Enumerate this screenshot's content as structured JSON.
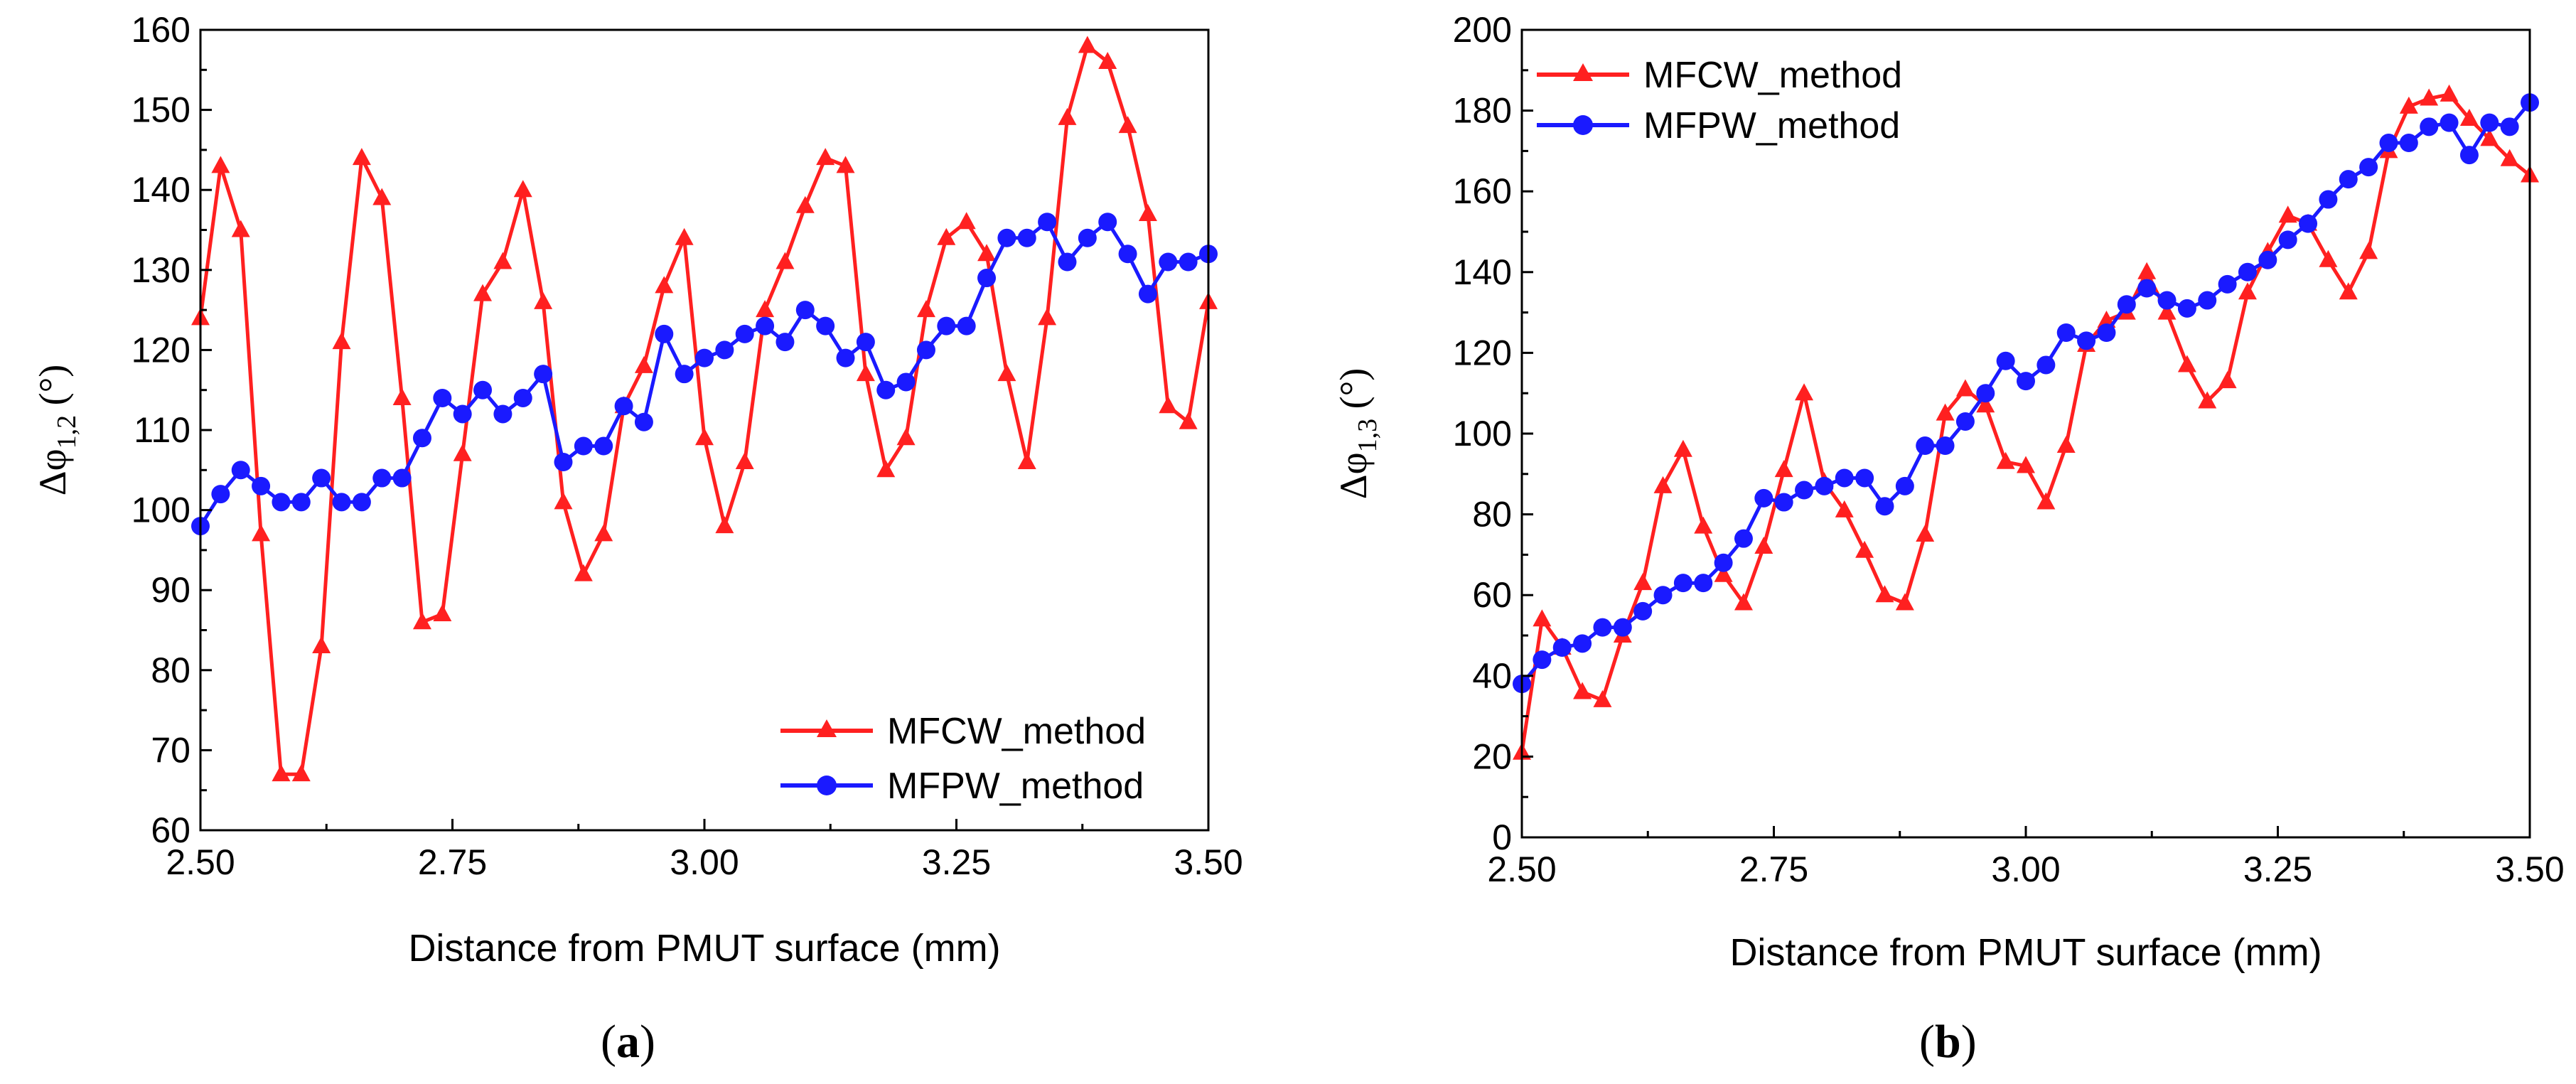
{
  "colors": {
    "mfcw": "#ff2020",
    "mfpw": "#1a1aff",
    "axis": "#000000"
  },
  "chart_data": [
    {
      "type": "line",
      "panel": "a",
      "caption_open": "(",
      "caption_letter": "a",
      "caption_close": ")",
      "xlabel": "Distance from PMUT surface (mm)",
      "ylabel_symbol": "Δφ",
      "ylabel_subscript": "1,2",
      "ylabel_unit": "(°)",
      "xlim": [
        2.5,
        3.5
      ],
      "ylim": [
        60,
        160
      ],
      "xticks": [
        "2.50",
        "2.75",
        "3.00",
        "3.25",
        "3.50"
      ],
      "yticks": [
        "60",
        "70",
        "80",
        "90",
        "100",
        "110",
        "120",
        "130",
        "140",
        "150",
        "160"
      ],
      "legend_position": "bottom-right",
      "series": [
        {
          "name": "MFCW_method",
          "marker": "triangle",
          "x": [
            2.5,
            2.52,
            2.54,
            2.56,
            2.58,
            2.6,
            2.62,
            2.64,
            2.66,
            2.68,
            2.7,
            2.72,
            2.74,
            2.76,
            2.78,
            2.8,
            2.82,
            2.84,
            2.86,
            2.88,
            2.9,
            2.92,
            2.94,
            2.96,
            2.98,
            3.0,
            3.02,
            3.04,
            3.06,
            3.08,
            3.1,
            3.12,
            3.14,
            3.16,
            3.18,
            3.2,
            3.22,
            3.24,
            3.26,
            3.28,
            3.3,
            3.32,
            3.34,
            3.36,
            3.38,
            3.4,
            3.42,
            3.44,
            3.46,
            3.48,
            3.5
          ],
          "values": [
            124,
            143,
            135,
            97,
            67,
            67,
            83,
            121,
            144,
            139,
            114,
            86,
            87,
            107,
            127,
            131,
            140,
            126,
            101,
            92,
            97,
            113,
            118,
            128,
            134,
            109,
            98,
            106,
            125,
            131,
            138,
            144,
            143,
            117,
            105,
            109,
            125,
            134,
            136,
            132,
            117,
            106,
            124,
            149,
            158,
            156,
            148,
            137,
            113,
            111,
            126
          ]
        },
        {
          "name": "MFPW_method",
          "marker": "circle",
          "x": [
            2.5,
            2.52,
            2.54,
            2.56,
            2.58,
            2.6,
            2.62,
            2.64,
            2.66,
            2.68,
            2.7,
            2.72,
            2.74,
            2.76,
            2.78,
            2.8,
            2.82,
            2.84,
            2.86,
            2.88,
            2.9,
            2.92,
            2.94,
            2.96,
            2.98,
            3.0,
            3.02,
            3.04,
            3.06,
            3.08,
            3.1,
            3.12,
            3.14,
            3.16,
            3.18,
            3.2,
            3.22,
            3.24,
            3.26,
            3.28,
            3.3,
            3.32,
            3.34,
            3.36,
            3.38,
            3.4,
            3.42,
            3.44,
            3.46,
            3.48,
            3.5
          ],
          "values": [
            98,
            102,
            105,
            103,
            101,
            101,
            104,
            101,
            101,
            104,
            104,
            109,
            114,
            112,
            115,
            112,
            114,
            117,
            106,
            108,
            108,
            113,
            111,
            122,
            117,
            119,
            120,
            122,
            123,
            121,
            125,
            123,
            119,
            121,
            115,
            116,
            120,
            123,
            123,
            129,
            134,
            134,
            136,
            131,
            134,
            136,
            132,
            127,
            131,
            131,
            132
          ]
        }
      ]
    },
    {
      "type": "line",
      "panel": "b",
      "caption_open": "(",
      "caption_letter": "b",
      "caption_close": ")",
      "xlabel": "Distance from PMUT surface (mm)",
      "ylabel_symbol": "Δφ",
      "ylabel_subscript": "1,3",
      "ylabel_unit": "(°)",
      "xlim": [
        2.5,
        3.5
      ],
      "ylim": [
        0,
        200
      ],
      "xticks": [
        "2.50",
        "2.75",
        "3.00",
        "3.25",
        "3.50"
      ],
      "yticks": [
        "0",
        "20",
        "40",
        "60",
        "80",
        "100",
        "120",
        "140",
        "160",
        "180",
        "200"
      ],
      "legend_position": "top-left",
      "series": [
        {
          "name": "MFCW_method",
          "marker": "triangle",
          "x": [
            2.5,
            2.52,
            2.54,
            2.56,
            2.58,
            2.6,
            2.62,
            2.64,
            2.66,
            2.68,
            2.7,
            2.72,
            2.74,
            2.76,
            2.78,
            2.8,
            2.82,
            2.84,
            2.86,
            2.88,
            2.9,
            2.92,
            2.94,
            2.96,
            2.98,
            3.0,
            3.02,
            3.04,
            3.06,
            3.08,
            3.1,
            3.12,
            3.14,
            3.16,
            3.18,
            3.2,
            3.22,
            3.24,
            3.26,
            3.28,
            3.3,
            3.32,
            3.34,
            3.36,
            3.38,
            3.4,
            3.42,
            3.44,
            3.46,
            3.48,
            3.5
          ],
          "values": [
            21,
            54,
            47,
            36,
            34,
            50,
            63,
            87,
            96,
            77,
            65,
            58,
            72,
            91,
            110,
            88,
            81,
            71,
            60,
            58,
            75,
            105,
            111,
            107,
            93,
            92,
            83,
            97,
            122,
            128,
            130,
            140,
            130,
            117,
            108,
            113,
            135,
            145,
            154,
            152,
            143,
            135,
            145,
            170,
            181,
            183,
            184,
            178,
            173,
            168,
            164
          ]
        },
        {
          "name": "MFPW_method",
          "marker": "circle",
          "x": [
            2.5,
            2.52,
            2.54,
            2.56,
            2.58,
            2.6,
            2.62,
            2.64,
            2.66,
            2.68,
            2.7,
            2.72,
            2.74,
            2.76,
            2.78,
            2.8,
            2.82,
            2.84,
            2.86,
            2.88,
            2.9,
            2.92,
            2.94,
            2.96,
            2.98,
            3.0,
            3.02,
            3.04,
            3.06,
            3.08,
            3.1,
            3.12,
            3.14,
            3.16,
            3.18,
            3.2,
            3.22,
            3.24,
            3.26,
            3.28,
            3.3,
            3.32,
            3.34,
            3.36,
            3.38,
            3.4,
            3.42,
            3.44,
            3.46,
            3.48,
            3.5
          ],
          "values": [
            38,
            44,
            47,
            48,
            52,
            52,
            56,
            60,
            63,
            63,
            68,
            74,
            84,
            83,
            86,
            87,
            89,
            89,
            82,
            87,
            97,
            97,
            103,
            110,
            118,
            113,
            117,
            125,
            123,
            125,
            132,
            136,
            133,
            131,
            133,
            137,
            140,
            143,
            148,
            152,
            158,
            163,
            166,
            172,
            172,
            176,
            177,
            169,
            177,
            176,
            182
          ]
        }
      ]
    }
  ]
}
